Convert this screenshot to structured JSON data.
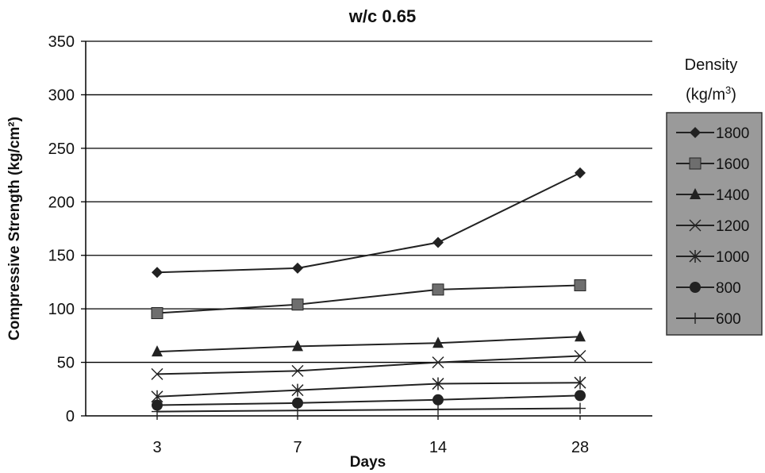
{
  "chart_data": {
    "type": "line",
    "title": "w/c 0.65",
    "xlabel": "Days",
    "ylabel": "Compressive Strength (kg/cm²)",
    "categories": [
      "3",
      "7",
      "14",
      "28"
    ],
    "ylim": [
      0,
      350
    ],
    "yticks": [
      0,
      50,
      100,
      150,
      200,
      250,
      300,
      350
    ],
    "grid": true,
    "legend": {
      "title_line1": "Density",
      "title_line2_prefix": "(kg/m",
      "title_line2_sup": "3",
      "title_line2_suffix": ")",
      "position": "right"
    },
    "series": [
      {
        "name": "1800",
        "marker": "diamond",
        "values": [
          134,
          138,
          162,
          227
        ]
      },
      {
        "name": "1600",
        "marker": "square",
        "values": [
          96,
          104,
          118,
          122
        ]
      },
      {
        "name": "1400",
        "marker": "triangle",
        "values": [
          60,
          65,
          68,
          74
        ]
      },
      {
        "name": "1200",
        "marker": "x",
        "values": [
          39,
          42,
          50,
          56
        ]
      },
      {
        "name": "1000",
        "marker": "star",
        "values": [
          18,
          24,
          30,
          31
        ]
      },
      {
        "name": "800",
        "marker": "circle",
        "values": [
          10,
          12,
          15,
          19
        ]
      },
      {
        "name": "600",
        "marker": "plus",
        "values": [
          4,
          5,
          6,
          7
        ]
      }
    ]
  },
  "colors": {
    "line": "#222222",
    "grid": "#000000",
    "legend_bg": "#9a9a9a",
    "square_fill": "#6e6e6e"
  }
}
